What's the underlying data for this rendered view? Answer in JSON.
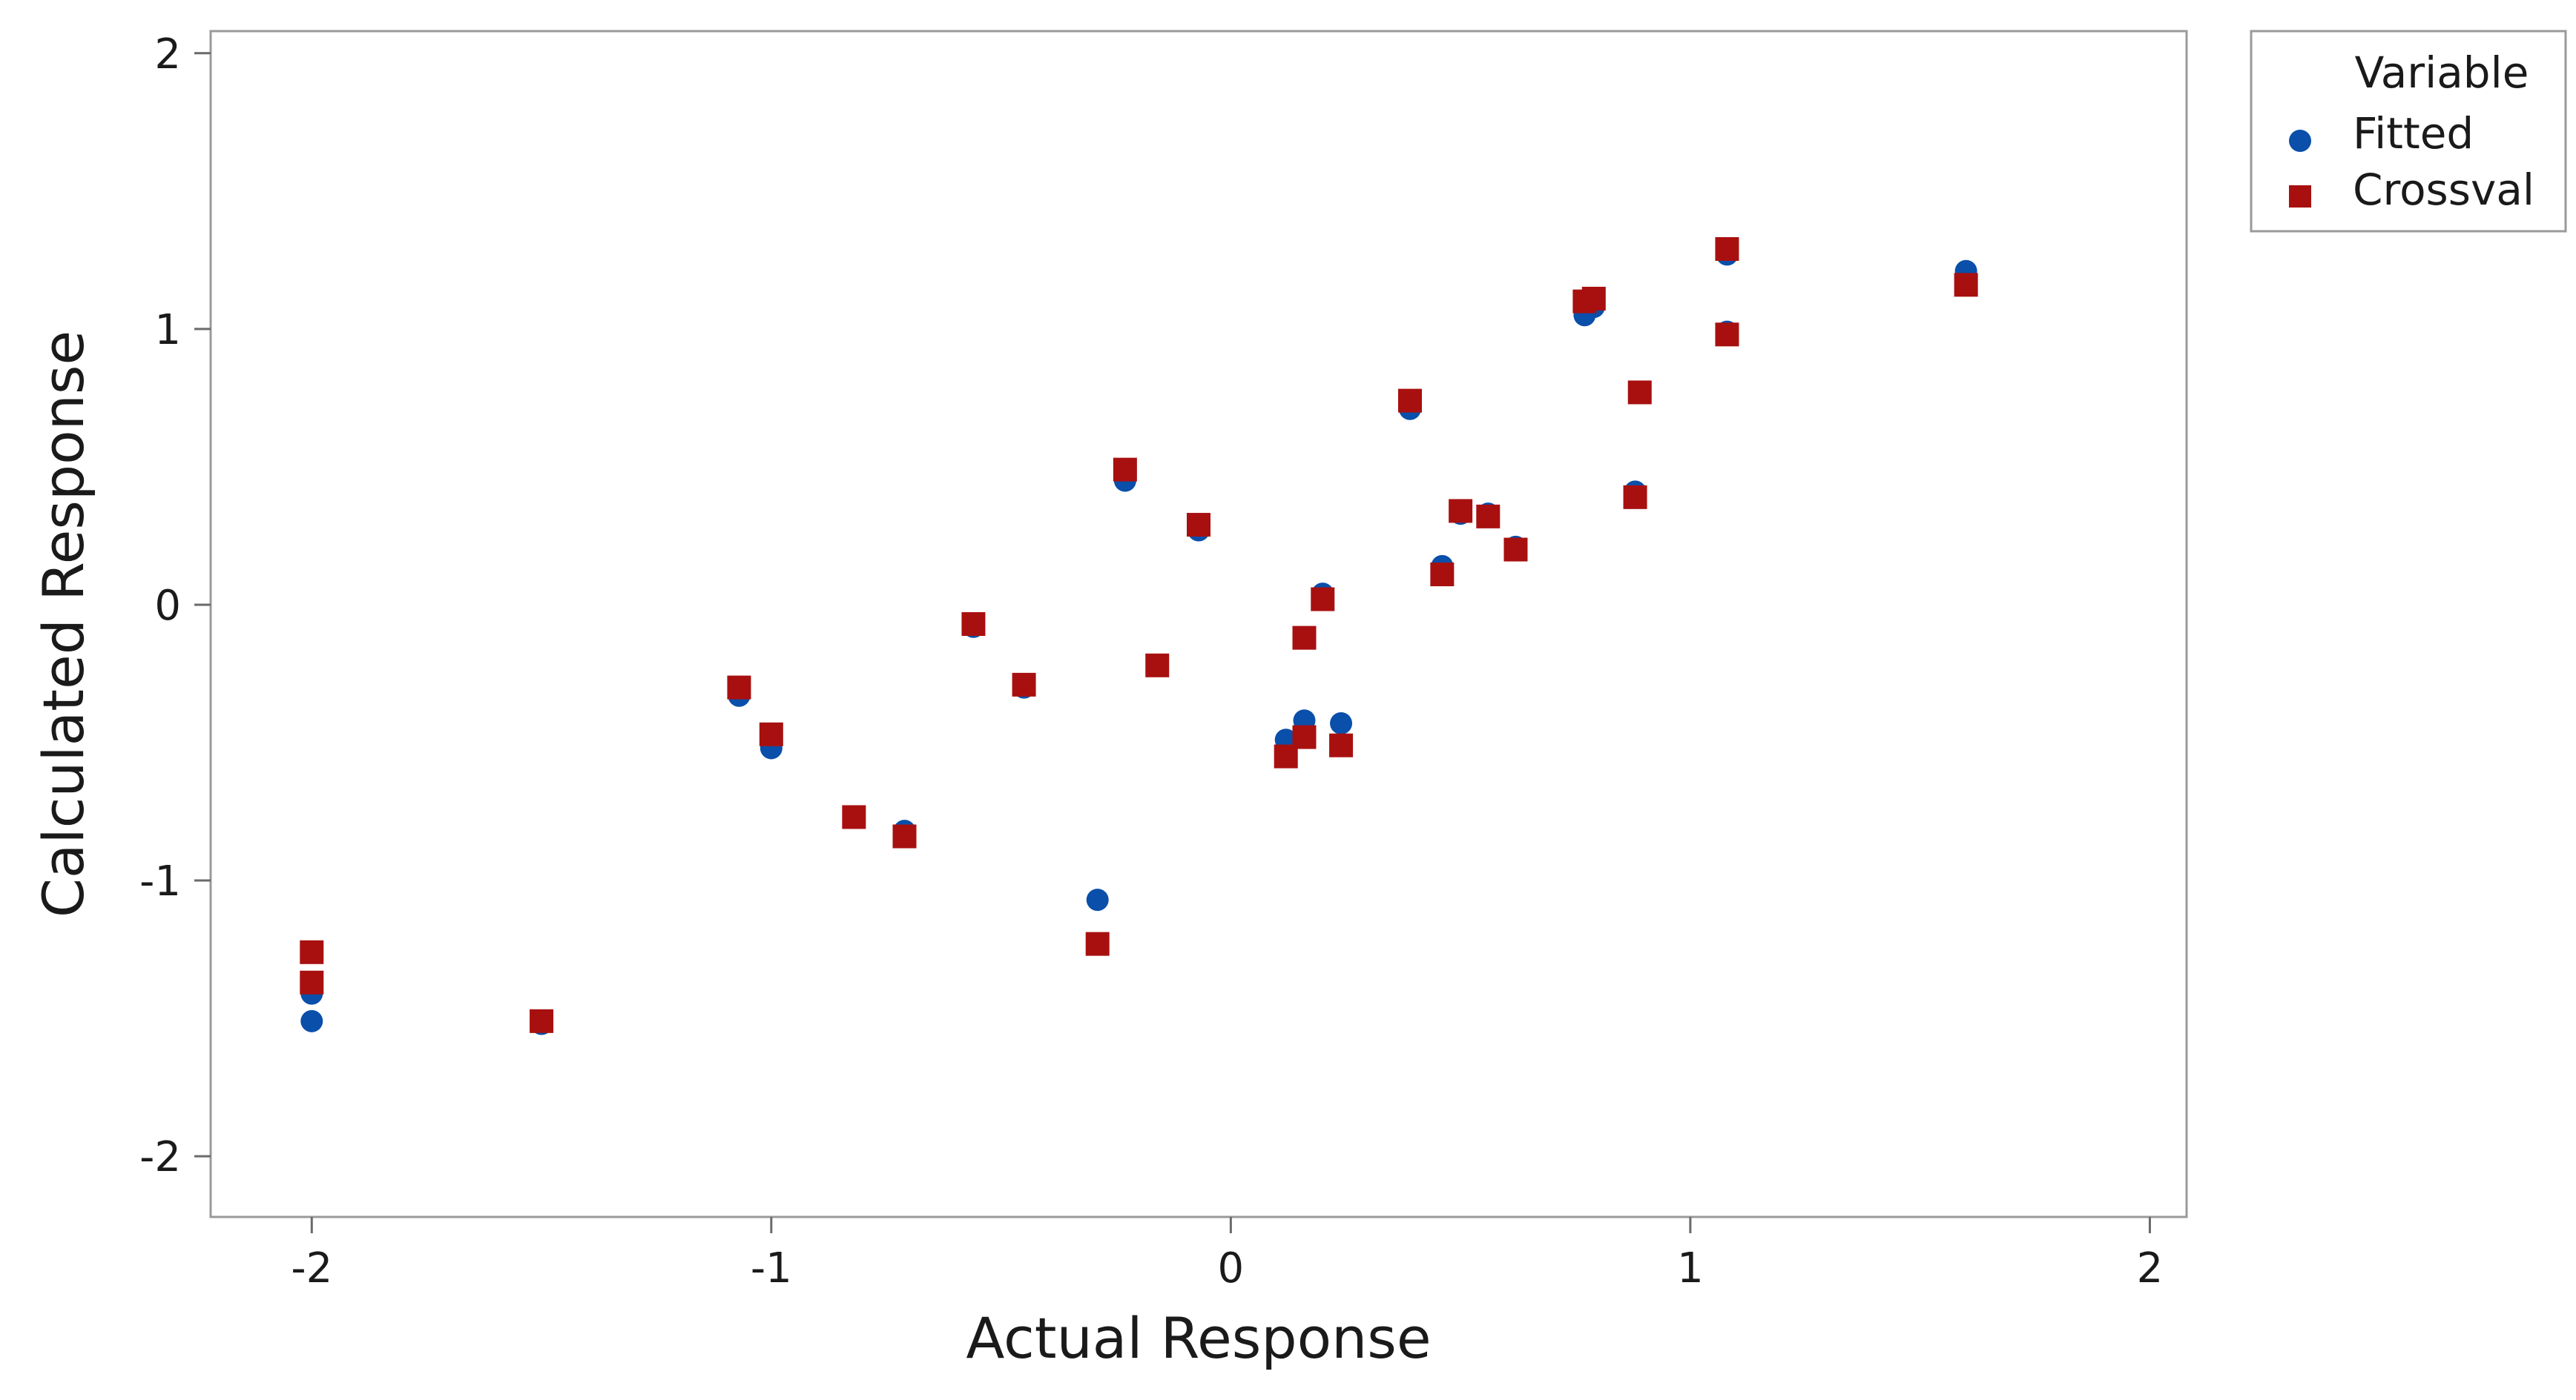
{
  "chart_data": {
    "type": "scatter",
    "title": "",
    "xlabel": "Actual Response",
    "ylabel": "Calculated Response",
    "xlim": [
      -2.22,
      2.08
    ],
    "ylim": [
      -2.22,
      2.08
    ],
    "xticks": [
      -2,
      -1,
      0,
      1,
      2
    ],
    "yticks": [
      -2,
      -1,
      0,
      1,
      2
    ],
    "xtick_labels": [
      "-2",
      "-1",
      "0",
      "1",
      "2"
    ],
    "ytick_labels": [
      "-2",
      "-1",
      "0",
      "1",
      "2"
    ],
    "grid": false,
    "legend": {
      "title": "Variable",
      "placement": "top-right, outside plot area"
    },
    "series": [
      {
        "name": "Fitted",
        "marker": "circle",
        "color": "#0a4faa",
        "points": [
          [
            -2.0,
            -1.51
          ],
          [
            -2.0,
            -1.41
          ],
          [
            -1.5,
            -1.52
          ],
          [
            -1.07,
            -0.33
          ],
          [
            -1.0,
            -0.52
          ],
          [
            -0.82,
            -0.77
          ],
          [
            -0.71,
            -0.82
          ],
          [
            -0.56,
            -0.08
          ],
          [
            -0.45,
            -0.3
          ],
          [
            -0.29,
            -1.07
          ],
          [
            -0.23,
            0.45
          ],
          [
            -0.16,
            -0.22
          ],
          [
            -0.07,
            0.27
          ],
          [
            0.12,
            -0.49
          ],
          [
            0.16,
            -0.42
          ],
          [
            0.16,
            -0.12
          ],
          [
            0.2,
            0.04
          ],
          [
            0.24,
            -0.43
          ],
          [
            0.39,
            0.71
          ],
          [
            0.46,
            0.14
          ],
          [
            0.5,
            0.33
          ],
          [
            0.56,
            0.33
          ],
          [
            0.62,
            0.21
          ],
          [
            0.77,
            1.05
          ],
          [
            0.79,
            1.08
          ],
          [
            0.88,
            0.41
          ],
          [
            0.89,
            0.77
          ],
          [
            1.08,
            0.99
          ],
          [
            1.08,
            1.27
          ],
          [
            1.6,
            1.21
          ]
        ]
      },
      {
        "name": "Crossval",
        "marker": "square",
        "color": "#a81010",
        "points": [
          [
            -2.0,
            -1.26
          ],
          [
            -2.0,
            -1.37
          ],
          [
            -1.5,
            -1.51
          ],
          [
            -1.07,
            -0.3
          ],
          [
            -1.0,
            -0.47
          ],
          [
            -0.82,
            -0.77
          ],
          [
            -0.71,
            -0.84
          ],
          [
            -0.56,
            -0.07
          ],
          [
            -0.45,
            -0.29
          ],
          [
            -0.29,
            -1.23
          ],
          [
            -0.23,
            0.49
          ],
          [
            -0.16,
            -0.22
          ],
          [
            -0.07,
            0.29
          ],
          [
            0.12,
            -0.55
          ],
          [
            0.16,
            -0.48
          ],
          [
            0.16,
            -0.12
          ],
          [
            0.2,
            0.02
          ],
          [
            0.24,
            -0.51
          ],
          [
            0.39,
            0.74
          ],
          [
            0.46,
            0.11
          ],
          [
            0.5,
            0.34
          ],
          [
            0.56,
            0.32
          ],
          [
            0.62,
            0.2
          ],
          [
            0.77,
            1.1
          ],
          [
            0.79,
            1.11
          ],
          [
            0.88,
            0.39
          ],
          [
            0.89,
            0.77
          ],
          [
            1.08,
            0.98
          ],
          [
            1.08,
            1.29
          ],
          [
            1.6,
            1.16
          ]
        ]
      }
    ]
  }
}
